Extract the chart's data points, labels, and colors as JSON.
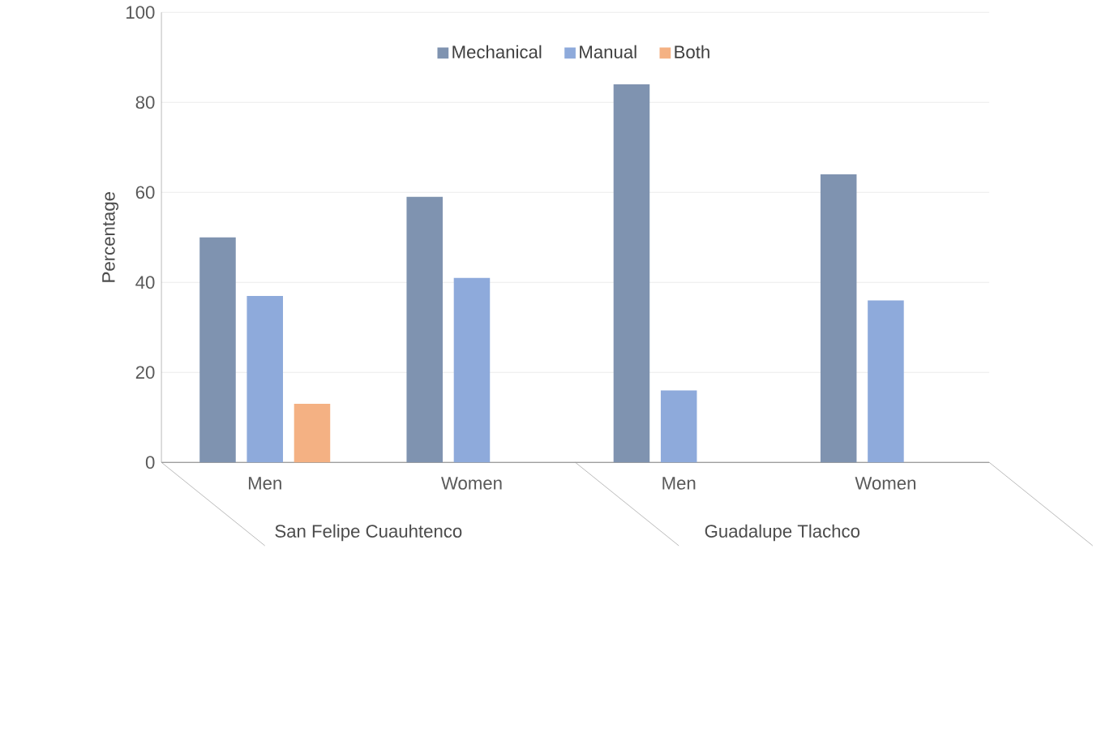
{
  "chart_data": {
    "type": "bar",
    "ylabel": "Percentage",
    "categories": [
      "Men",
      "Women",
      "Men",
      "Women"
    ],
    "series": [
      {
        "name": "Mechanical",
        "color": "#7f93b0",
        "values": [
          50,
          59,
          84,
          64
        ]
      },
      {
        "name": "Manual",
        "color": "#8eaadb",
        "values": [
          37,
          41,
          16,
          36
        ]
      },
      {
        "name": "Both",
        "color": "#f4b183",
        "values": [
          13,
          null,
          null,
          null
        ]
      }
    ],
    "annotations": [
      "San Felipe Cuauhtenco",
      "Guadalupe Tlachco"
    ],
    "ylim": [
      0,
      100
    ],
    "yticks": [
      0,
      20,
      40,
      60,
      80,
      100
    ],
    "grid": "y",
    "legend": "top"
  }
}
